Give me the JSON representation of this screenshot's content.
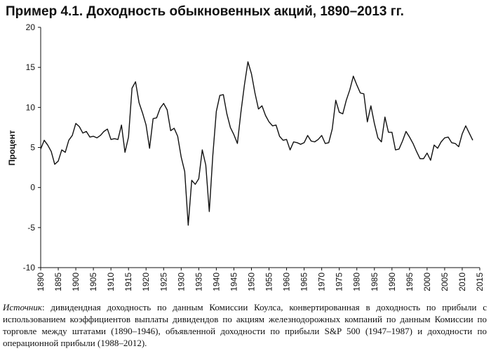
{
  "chart_data": {
    "type": "line",
    "title": "Пример 4.1. Доходность обыкновенных акций, 1890–2013 гг.",
    "y_label": "Процент",
    "color": "#111111",
    "x": [
      1890,
      1891,
      1892,
      1893,
      1894,
      1895,
      1896,
      1897,
      1898,
      1899,
      1900,
      1901,
      1902,
      1903,
      1904,
      1905,
      1906,
      1907,
      1908,
      1909,
      1910,
      1911,
      1912,
      1913,
      1914,
      1915,
      1916,
      1917,
      1918,
      1919,
      1920,
      1921,
      1922,
      1923,
      1924,
      1925,
      1926,
      1927,
      1928,
      1929,
      1930,
      1931,
      1932,
      1933,
      1934,
      1935,
      1936,
      1937,
      1938,
      1939,
      1940,
      1941,
      1942,
      1943,
      1944,
      1945,
      1946,
      1947,
      1948,
      1949,
      1950,
      1951,
      1952,
      1953,
      1954,
      1955,
      1956,
      1957,
      1958,
      1959,
      1960,
      1961,
      1962,
      1963,
      1964,
      1965,
      1966,
      1967,
      1968,
      1969,
      1970,
      1971,
      1972,
      1973,
      1974,
      1975,
      1976,
      1977,
      1978,
      1979,
      1980,
      1981,
      1982,
      1983,
      1984,
      1985,
      1986,
      1987,
      1988,
      1989,
      1990,
      1991,
      1992,
      1993,
      1994,
      1995,
      1996,
      1997,
      1998,
      1999,
      2000,
      2001,
      2002,
      2003,
      2004,
      2005,
      2006,
      2007,
      2008,
      2009,
      2010,
      2011,
      2012,
      2013
    ],
    "values": [
      4.8,
      5.9,
      5.3,
      4.5,
      2.9,
      3.3,
      4.7,
      4.4,
      5.9,
      6.5,
      8.0,
      7.6,
      6.8,
      7.0,
      6.3,
      6.4,
      6.2,
      6.5,
      7.0,
      7.3,
      6.0,
      6.1,
      6.0,
      7.8,
      4.4,
      6.3,
      12.4,
      13.2,
      10.6,
      9.3,
      7.8,
      4.9,
      8.6,
      8.7,
      9.9,
      10.5,
      9.7,
      7.1,
      7.4,
      6.4,
      3.8,
      2.0,
      -4.7,
      0.9,
      0.4,
      1.1,
      4.7,
      2.8,
      -3.0,
      4.0,
      9.5,
      11.5,
      11.6,
      9.2,
      7.5,
      6.6,
      5.5,
      9.4,
      12.8,
      15.7,
      14.2,
      11.8,
      9.8,
      10.2,
      9.0,
      8.2,
      7.7,
      7.8,
      6.4,
      5.9,
      6.0,
      4.7,
      5.7,
      5.6,
      5.4,
      5.6,
      6.5,
      5.8,
      5.7,
      6.0,
      6.5,
      5.5,
      5.6,
      7.3,
      10.9,
      9.4,
      9.2,
      10.9,
      12.2,
      13.9,
      12.8,
      11.8,
      11.7,
      8.2,
      10.2,
      8.0,
      6.2,
      5.7,
      8.8,
      6.9,
      6.9,
      4.7,
      4.8,
      5.8,
      7.0,
      6.3,
      5.5,
      4.5,
      3.6,
      3.6,
      4.3,
      3.4,
      5.3,
      4.9,
      5.7,
      6.2,
      6.3,
      5.6,
      5.5,
      5.1,
      6.7,
      7.7,
      6.8,
      5.9
    ],
    "xlim": [
      1890,
      2015
    ],
    "xticks": [
      1890,
      1895,
      1900,
      1905,
      1910,
      1915,
      1920,
      1925,
      1930,
      1935,
      1940,
      1945,
      1950,
      1955,
      1960,
      1965,
      1970,
      1975,
      1980,
      1985,
      1990,
      1995,
      2000,
      2005,
      2010,
      2015
    ],
    "ylim": [
      -10,
      20
    ],
    "yticks": [
      -10,
      -5,
      0,
      5,
      10,
      15,
      20
    ]
  },
  "source": {
    "label": "Источник",
    "text": ": дивидендная доходность по данным Комиссии Коулса, конвертированная в доходность по прибыли с использованием коэффициентов выплаты дивидендов по акциям железнодорожных компаний по данным Комиссии по торговле между штатами (1890–1946), объявленной доходности по прибыли S&P 500 (1947–1987) и доходности по операционной прибыли (1988–2012)."
  }
}
